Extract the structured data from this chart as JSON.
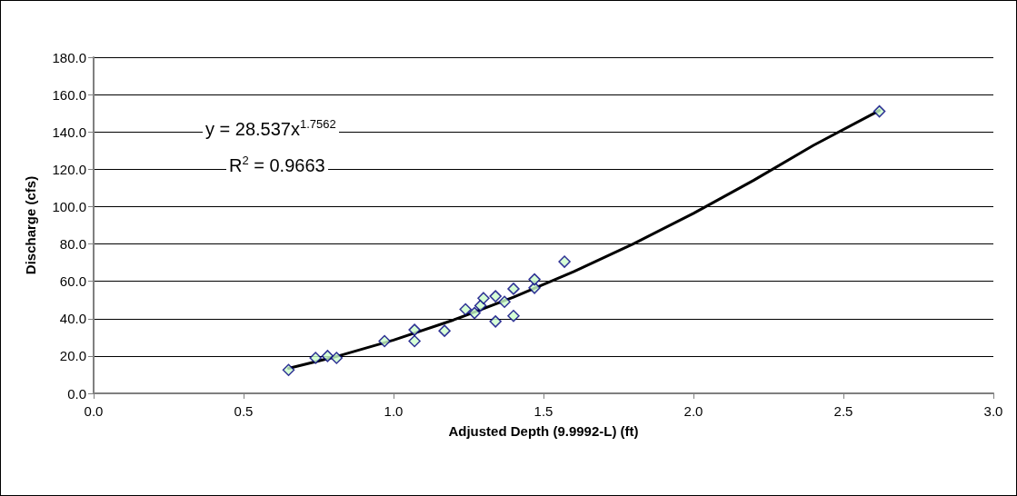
{
  "chart_data": {
    "type": "scatter",
    "xlabel": "Adjusted Depth (9.9992-L) (ft)",
    "ylabel": "Discharge (cfs)",
    "annotations": [
      "y = 28.537x$^{1.7562}$",
      "R$^{2}$ = 0.9663"
    ],
    "series": [
      {
        "type": "scatter",
        "color": "#ccffcc",
        "marker": "diamond",
        "x": [
          0.65,
          0.74,
          0.78,
          0.81,
          0.97,
          1.07,
          1.07,
          1.17,
          1.24,
          1.27,
          1.29,
          1.3,
          1.34,
          1.34,
          1.37,
          1.4,
          1.4,
          1.47,
          1.47,
          1.57,
          2.62
        ],
        "values": [
          12.5,
          19,
          20,
          19,
          28,
          34,
          28,
          33.5,
          45,
          43,
          47,
          51,
          52,
          38.5,
          49,
          56,
          41.5,
          56.5,
          61,
          70.5,
          151
        ]
      },
      {
        "type": "line",
        "color": "#000000",
        "marker": "none",
        "line_style": "solid",
        "x": [
          0.65,
          0.8,
          1.0,
          1.2,
          1.4,
          1.6,
          1.8,
          2.0,
          2.2,
          2.4,
          2.62
        ],
        "values": [
          13.4,
          19.3,
          28.5,
          39.3,
          51.5,
          65.1,
          80.1,
          96.4,
          114.0,
          132.8,
          151.5
        ]
      }
    ],
    "xlim": [
      0,
      3
    ],
    "xticks": [
      {
        "value": 0,
        "label": "0.0"
      },
      {
        "value": 0.5,
        "label": "0.5"
      },
      {
        "value": 1,
        "label": "1.0"
      },
      {
        "value": 1.5,
        "label": "1.5"
      },
      {
        "value": 2,
        "label": "2.0"
      },
      {
        "value": 2.5,
        "label": "2.5"
      },
      {
        "value": 3,
        "label": "3.0"
      }
    ],
    "ylim": [
      0,
      180
    ],
    "yticks": [
      {
        "value": 0,
        "label": "0.0"
      },
      {
        "value": 20,
        "label": "20.0"
      },
      {
        "value": 40,
        "label": "40.0"
      },
      {
        "value": 60,
        "label": "60.0"
      },
      {
        "value": 80,
        "label": "80.0"
      },
      {
        "value": 100,
        "label": "100.0"
      },
      {
        "value": 120,
        "label": "120.0"
      },
      {
        "value": 140,
        "label": "140.0"
      },
      {
        "value": 160,
        "label": "160.0"
      },
      {
        "value": 180,
        "label": "180.0"
      }
    ],
    "grid": "y"
  }
}
